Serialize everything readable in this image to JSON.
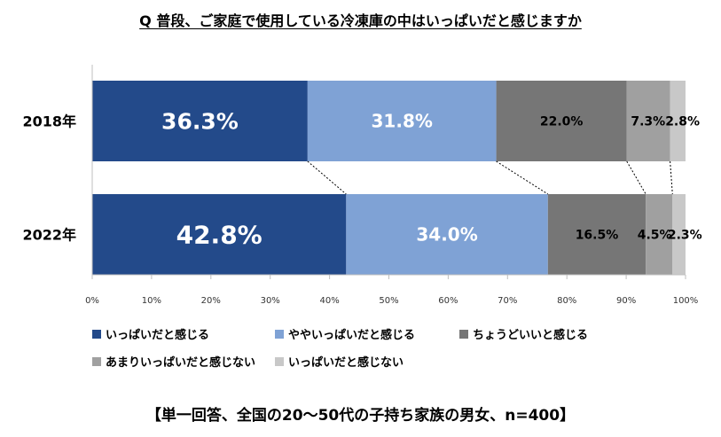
{
  "chart_data": {
    "type": "bar",
    "orientation": "horizontal",
    "stacked": true,
    "title": "Q 普段、ご家庭で使用している冷凍庫の中はいっぱいだと感じますか",
    "categories": [
      "2018年",
      "2022年"
    ],
    "series": [
      {
        "name": "いっぱいだと感じる",
        "values": [
          36.3,
          42.8
        ],
        "labels": [
          "36.3%",
          "42.8%"
        ],
        "color": "#234a8a",
        "label_color": "#ffffff"
      },
      {
        "name": "ややいっぱいだと感じる",
        "values": [
          31.8,
          34.0
        ],
        "labels": [
          "31.8%",
          "34.0%"
        ],
        "color": "#7fa2d5",
        "label_color": "#ffffff"
      },
      {
        "name": "ちょうどいいと感じる",
        "values": [
          22.0,
          16.5
        ],
        "labels": [
          "22.0%",
          "16.5%"
        ],
        "color": "#767676",
        "label_color": "#000000"
      },
      {
        "name": "あまりいっぱいだと感じない",
        "values": [
          7.3,
          4.5
        ],
        "labels": [
          "7.3%",
          "4.5%"
        ],
        "color": "#a0a0a0",
        "label_color": "#000000"
      },
      {
        "name": "いっぱいだと感じない",
        "values": [
          2.8,
          2.3
        ],
        "labels": [
          "2.8%",
          "2.3%"
        ],
        "color": "#c8c8c8",
        "label_color": "#000000"
      }
    ],
    "xlim": [
      0,
      100
    ],
    "x_ticks": [
      "0%",
      "10%",
      "20%",
      "30%",
      "40%",
      "50%",
      "60%",
      "70%",
      "80%",
      "90%",
      "100%"
    ],
    "grid": false,
    "legend_position": "bottom",
    "note": "【単一回答、全国の20～50代の子持ち家族の男女、n=400】"
  }
}
